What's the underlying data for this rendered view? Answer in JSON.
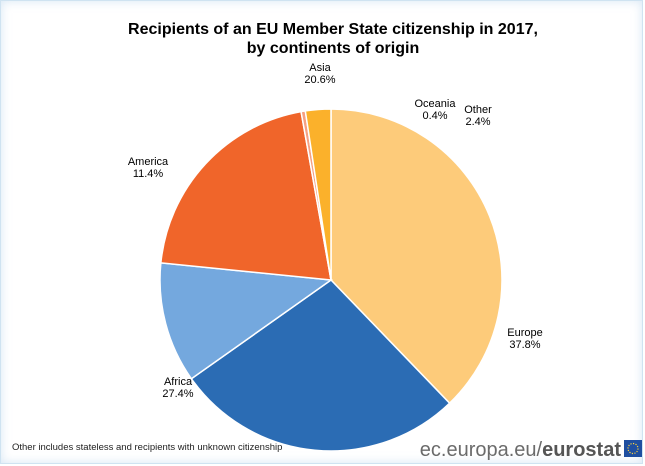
{
  "chart_data": {
    "type": "pie",
    "title_lines": [
      "Recipients of an EU Member State citizenship in 2017,",
      "by continents of origin"
    ],
    "slices": [
      {
        "label": "Europe",
        "value": 37.8,
        "value_label": "37.8%",
        "color": "#fdcb7a"
      },
      {
        "label": "Africa",
        "value": 27.4,
        "value_label": "27.4%",
        "color": "#2b6cb4"
      },
      {
        "label": "America",
        "value": 11.4,
        "value_label": "11.4%",
        "color": "#74a8de"
      },
      {
        "label": "Asia",
        "value": 20.6,
        "value_label": "20.6%",
        "color": "#f0652a"
      },
      {
        "label": "Oceania",
        "value": 0.4,
        "value_label": "0.4%",
        "color": "#f6a081"
      },
      {
        "label": "Other",
        "value": 2.4,
        "value_label": "2.4%",
        "color": "#fbb12b"
      }
    ],
    "footnote": "Other includes stateless and recipients with unknown citizenship"
  },
  "branding": {
    "site": "ec.europa.eu/",
    "brand": "eurostat"
  }
}
